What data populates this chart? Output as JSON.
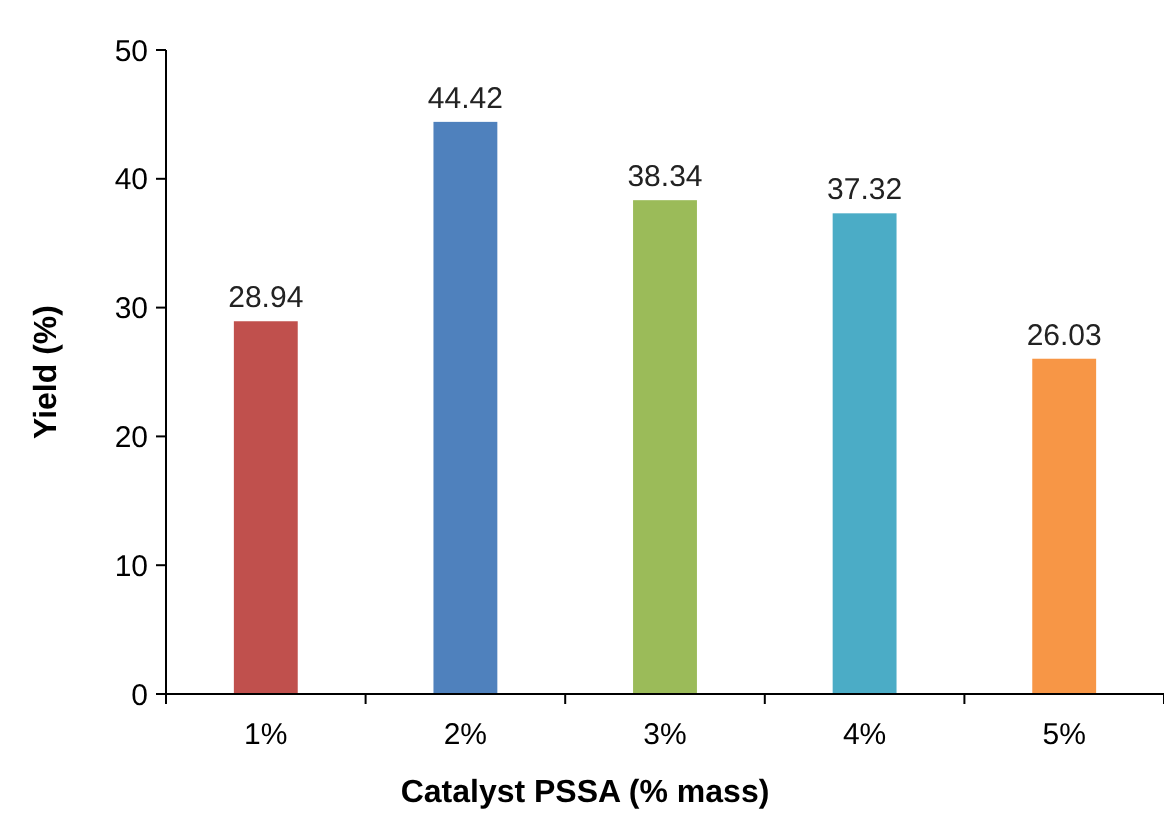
{
  "chart_data": {
    "type": "bar",
    "xlabel": "Catalyst PSSA (% mass)",
    "ylabel": "Yield (%)",
    "categories": [
      "1%",
      "2%",
      "3%",
      "4%",
      "5%"
    ],
    "values": [
      28.94,
      44.42,
      38.34,
      37.32,
      26.03
    ],
    "colors": [
      "#c0504d",
      "#4f81bd",
      "#9bbb59",
      "#4bacc6",
      "#f79646"
    ],
    "ylim": [
      0,
      50
    ],
    "yticks": [
      0,
      10,
      20,
      30,
      40,
      50
    ],
    "data_labels": true
  }
}
